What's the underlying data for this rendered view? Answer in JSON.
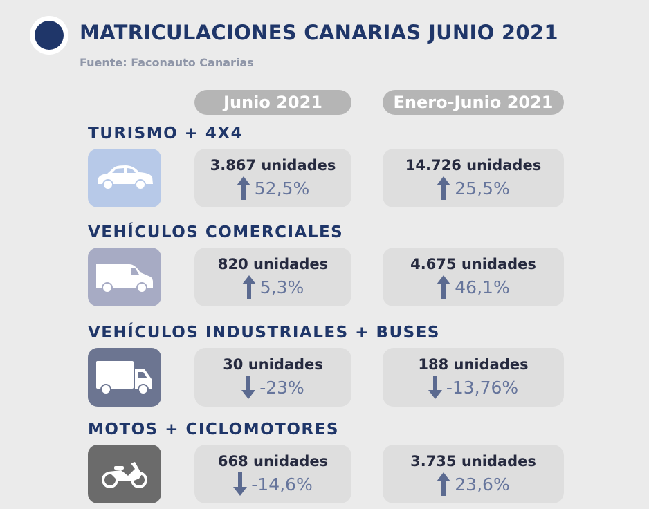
{
  "header": {
    "title": "MATRICULACIONES CANARIAS JUNIO 2021",
    "source": "Fuente: Faconauto Canarias"
  },
  "columns": [
    "Junio 2021",
    "Enero-Junio 2021"
  ],
  "sections": [
    {
      "title": "TURISMO + 4X4",
      "cells": [
        {
          "units": "3.867 unidades",
          "change": "52,5%"
        },
        {
          "units": "14.726 unidades",
          "change": "25,5%"
        }
      ]
    },
    {
      "title": "VEHÍCULOS COMERCIALES",
      "cells": [
        {
          "units": "820 unidades",
          "change": "5,3%"
        },
        {
          "units": "4.675 unidades",
          "change": "46,1%"
        }
      ]
    },
    {
      "title": "VEHÍCULOS INDUSTRIALES + BUSES",
      "cells": [
        {
          "units": "30 unidades",
          "change": "-23%"
        },
        {
          "units": "188 unidades",
          "change": "-13,76%"
        }
      ]
    },
    {
      "title": "MOTOS + CICLOMOTORES",
      "cells": [
        {
          "units": "668 unidades",
          "change": "-14,6%"
        },
        {
          "units": "3.735 unidades",
          "change": "23,6%"
        }
      ]
    }
  ]
}
